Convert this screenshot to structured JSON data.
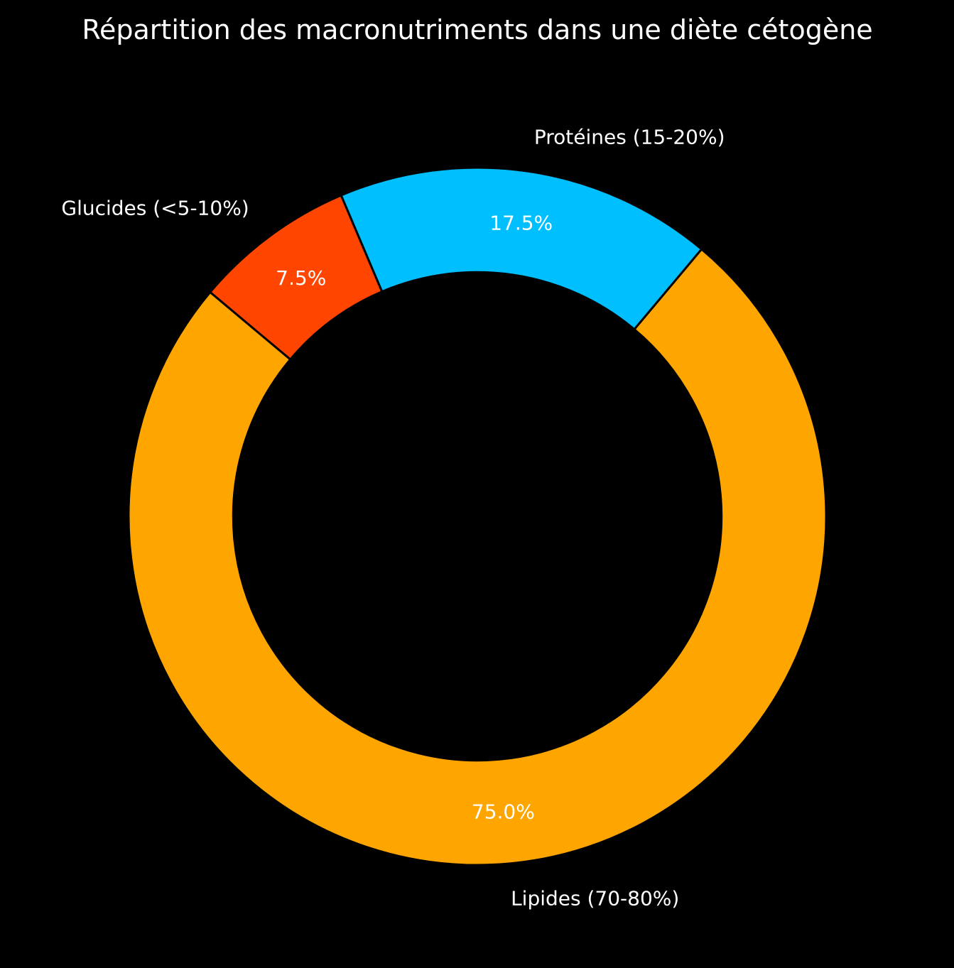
{
  "chart_data": {
    "type": "pie",
    "variant": "donut",
    "title": "Répartition des macronutriments dans une diète cétogène",
    "start_angle_deg": 140,
    "direction": "counterclockwise",
    "slices": [
      {
        "label": "Lipides (70-80%)",
        "value": 75.0,
        "pct_label": "75.0%",
        "color": "#FFA500"
      },
      {
        "label": "Protéines (15-20%)",
        "value": 17.5,
        "pct_label": "17.5%",
        "color": "#00BFFF"
      },
      {
        "label": "Glucides (<5-10%)",
        "value": 7.5,
        "pct_label": "7.5%",
        "color": "#FF4500"
      }
    ],
    "background": "#000000"
  }
}
